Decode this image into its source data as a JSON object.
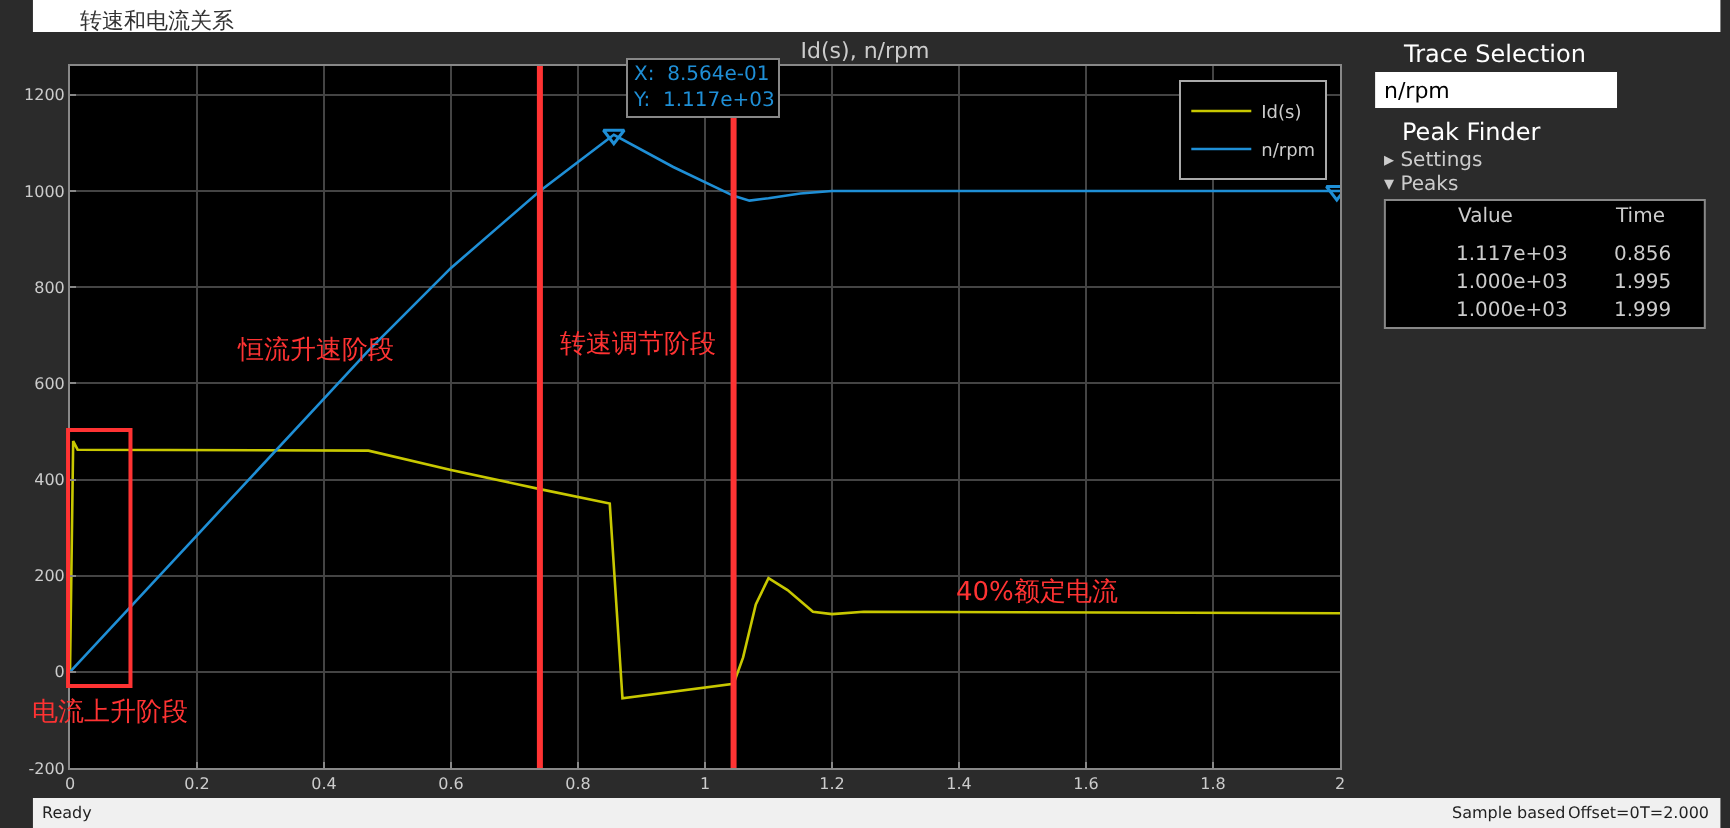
{
  "chart_data": {
    "type": "line",
    "title": "Id(s), n/rpm",
    "x": [
      0,
      0.005,
      0.012,
      0.47,
      0.6,
      0.74,
      0.85,
      0.87,
      1.045,
      1.06,
      1.08,
      1.1,
      1.13,
      1.17,
      1.2,
      1.25,
      2
    ],
    "series": [
      {
        "name": "Id(s)",
        "color": "#c8c800",
        "values": [
          0,
          480,
          462,
          460,
          420,
          380,
          350,
          -55,
          -25,
          30,
          140,
          195,
          170,
          125,
          120,
          125,
          122
        ]
      },
      {
        "name": "n/rpm",
        "color": "#1f8fd6",
        "x": [
          0,
          0.2,
          0.4,
          0.47,
          0.6,
          0.74,
          0.8564,
          0.95,
          1.045,
          1.07,
          1.1,
          1.15,
          1.2,
          2
        ],
        "values": [
          0,
          284,
          568,
          668,
          840,
          1000,
          1117,
          1050,
          990,
          980,
          985,
          995,
          1000,
          1000
        ]
      },
      {
        "type": "scatter",
        "marker": "triangle",
        "color": "#1f8fd6",
        "x": [
          0.8564,
          1.995
        ],
        "values": [
          1117,
          1000
        ]
      }
    ],
    "xlim": [
      0,
      2
    ],
    "xticks": [
      0,
      0.2,
      0.4,
      0.6,
      0.8,
      1,
      1.2,
      1.4,
      1.6,
      1.8,
      2
    ],
    "ylim": [
      -200,
      1260
    ],
    "yticks": [
      -200,
      0,
      200,
      400,
      600,
      800,
      1000,
      1200
    ],
    "grid": true,
    "legend": "top right",
    "ref_lines": [
      {
        "axis": "x",
        "value": 0.74,
        "color": "#ff3333"
      },
      {
        "axis": "x",
        "value": 1.045,
        "color": "#ff3333"
      }
    ],
    "annotations": [
      "转速和电流关系",
      "恒流升速阶段",
      "转速调节阶段",
      "电流上升阶段",
      "40%额定电流",
      "Trace Selection",
      "n/rpm",
      "Peak Finder",
      "▸ Settings",
      "▾ Peaks",
      "Value",
      "Time",
      "1.117e+03",
      "0.856",
      "1.000e+03",
      "1.995",
      "1.000e+03",
      "1.999",
      "Ready",
      "Sample based",
      "Offset=0",
      "T=2.000",
      {
        "text": "X:  8.564e-01\nY:  1.117e+03",
        "x": 0.8564,
        "y": 1117
      }
    ]
  }
}
